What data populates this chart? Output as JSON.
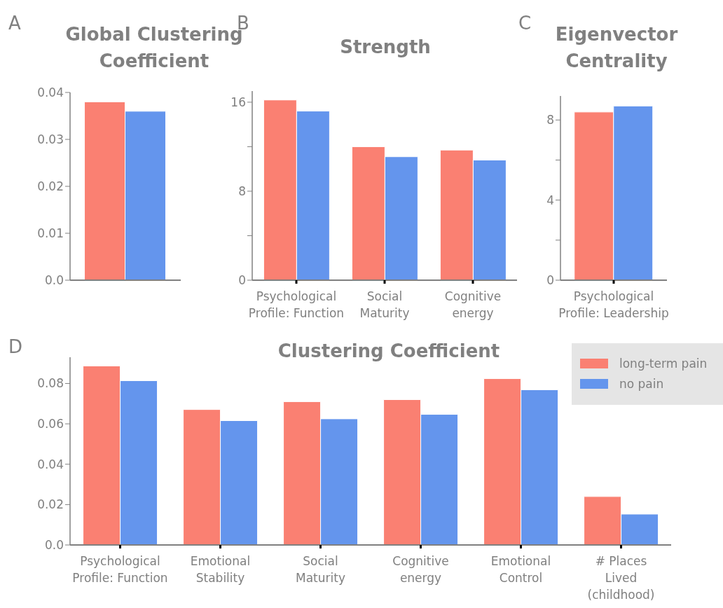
{
  "chart_data": [
    {
      "type": "bar",
      "title": "Global Clustering Coefficient",
      "annotations": [
        "A"
      ],
      "categories": [
        null
      ],
      "tick_labels": "y",
      "series": [
        {
          "color": "#fa8072",
          "values": [
            0.038
          ]
        },
        {
          "color": "#6495ed",
          "values": [
            0.036
          ]
        }
      ],
      "ylim": [
        0,
        0.04
      ],
      "yticks": [
        {
          "value": 0,
          "label": "0.0"
        },
        0.01,
        0.02,
        0.03,
        0.04
      ],
      "grid": false,
      "legend": false
    },
    {
      "type": "bar",
      "title": "Strength",
      "annotations": [
        "B"
      ],
      "categories": [
        "Psychological\nProfile: Function",
        "Social\nMaturity",
        "Cognitive\nenergy"
      ],
      "series": [
        {
          "color": "#fa8072",
          "values": [
            16.2,
            12.0,
            11.7
          ]
        },
        {
          "color": "#6495ed",
          "values": [
            15.2,
            11.1,
            10.8
          ]
        }
      ],
      "ylim": [
        0,
        17
      ],
      "yticks": [
        0,
        {
          "value": 4,
          "label": null
        },
        8,
        {
          "value": 12,
          "label": null
        },
        16
      ],
      "grid": false,
      "legend": false
    },
    {
      "type": "bar",
      "title": "Eigenvector Centrality",
      "annotations": [
        "C"
      ],
      "categories": [
        "Psychological\nProfile: Leadership"
      ],
      "series": [
        {
          "color": "#fa8072",
          "values": [
            8.4
          ]
        },
        {
          "color": "#6495ed",
          "values": [
            8.7
          ]
        }
      ],
      "ylim": [
        0,
        9.2
      ],
      "yticks": [
        0,
        {
          "value": 2,
          "label": null
        },
        4,
        {
          "value": 6,
          "label": null
        },
        8
      ],
      "grid": false,
      "legend": false
    },
    {
      "type": "bar",
      "title": "Clustering Coefficient",
      "annotations": [
        "D"
      ],
      "categories": [
        "Psychological\nProfile: Function",
        "Emotional\nStability",
        "Social\nMaturity",
        "Cognitive\nenergy",
        "Emotional\nControl",
        "# Places\nLived\n(childhood)"
      ],
      "series": [
        {
          "name": "long-term pain",
          "color": "#fa8072",
          "values": [
            0.0887,
            0.0671,
            0.071,
            0.072,
            0.0824,
            0.024
          ]
        },
        {
          "name": "no pain",
          "color": "#6495ed",
          "values": [
            0.0814,
            0.0616,
            0.0625,
            0.0647,
            0.0769,
            0.0153
          ]
        }
      ],
      "ylim": [
        0,
        0.093
      ],
      "yticks": [
        {
          "value": 0,
          "label": "0.0"
        },
        0.02,
        0.04,
        0.06,
        0.08
      ],
      "grid": false,
      "legend": "top right"
    }
  ]
}
